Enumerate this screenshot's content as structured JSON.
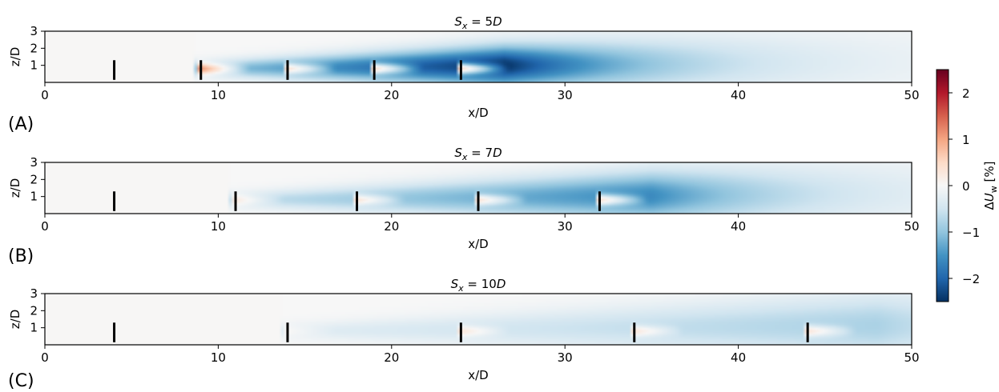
{
  "chart_data": {
    "type": "heatmap",
    "colormap": "RdBu_r",
    "colorbar": {
      "label_symbol": "ΔU",
      "label_subscript": "w",
      "label_unit": "[%]",
      "range": [
        -2.5,
        2.5
      ],
      "ticks": [
        2,
        1,
        0,
        -1,
        -2
      ],
      "tick_labels": [
        "2",
        "1",
        "0",
        "−1",
        "−2"
      ]
    },
    "panels": [
      {
        "letter": "(A)",
        "title_symbol": "S",
        "title_sub": "x",
        "title_rest": " = 5",
        "title_unit": "D",
        "xlabel": "x/D",
        "ylabel": "z/D",
        "xlim": [
          0,
          50
        ],
        "ylim": [
          0,
          3
        ],
        "x_ticks": [
          0,
          10,
          20,
          30,
          40,
          50
        ],
        "y_ticks": [
          1,
          2,
          3
        ],
        "spacing": 5,
        "turbines_x": [
          4,
          9,
          14,
          19,
          24
        ],
        "hub_height": 0.8,
        "rotor_span": [
          0.15,
          1.3
        ],
        "peak_deficit": -2.5,
        "peak_x": 26.5,
        "upstream_speedup": 2.0
      },
      {
        "letter": "(B)",
        "title_symbol": "S",
        "title_sub": "x",
        "title_rest": " = 7",
        "title_unit": "D",
        "xlabel": "x/D",
        "ylabel": "z/D",
        "xlim": [
          0,
          50
        ],
        "ylim": [
          0,
          3
        ],
        "x_ticks": [
          0,
          10,
          20,
          30,
          40,
          50
        ],
        "y_ticks": [
          1,
          2,
          3
        ],
        "spacing": 7,
        "turbines_x": [
          4,
          11,
          18,
          25,
          32
        ],
        "hub_height": 0.8,
        "rotor_span": [
          0.15,
          1.3
        ],
        "peak_deficit": -1.6,
        "peak_x": 35,
        "upstream_speedup": 0.8
      },
      {
        "letter": "(C)",
        "title_symbol": "S",
        "title_sub": "x",
        "title_rest": " = 10",
        "title_unit": "D",
        "xlabel": "x/D",
        "ylabel": "z/D",
        "xlim": [
          0,
          50
        ],
        "ylim": [
          0,
          3
        ],
        "x_ticks": [
          0,
          10,
          20,
          30,
          40,
          50
        ],
        "y_ticks": [
          1,
          2,
          3
        ],
        "spacing": 10,
        "turbines_x": [
          4,
          14,
          24,
          34,
          44
        ],
        "hub_height": 0.8,
        "rotor_span": [
          0.15,
          1.3
        ],
        "peak_deficit": -0.8,
        "peak_x": 48,
        "upstream_speedup": 0.3
      }
    ]
  }
}
